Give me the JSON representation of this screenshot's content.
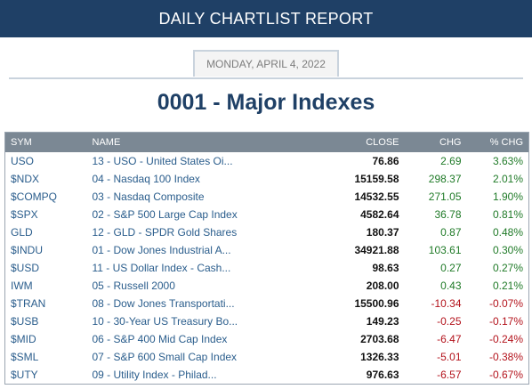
{
  "header": {
    "title": "DAILY CHARTLIST REPORT"
  },
  "report": {
    "date": "MONDAY, APRIL 4, 2022",
    "list_title": "0001 - Major Indexes"
  },
  "colors": {
    "banner": "#1f4066",
    "positive": "#1f7a27",
    "negative": "#b3121b",
    "symbol": "#2a5d8c"
  },
  "table": {
    "columns": [
      "SYM",
      "NAME",
      "CLOSE",
      "CHG",
      "% CHG"
    ],
    "rows": [
      {
        "sym": "USO",
        "name": "13 - USO - United States Oi...",
        "close": "76.86",
        "chg": "2.69",
        "pct": "3.63%",
        "dir": "pos"
      },
      {
        "sym": "$NDX",
        "name": "04 - Nasdaq 100 Index",
        "close": "15159.58",
        "chg": "298.37",
        "pct": "2.01%",
        "dir": "pos"
      },
      {
        "sym": "$COMPQ",
        "name": "03 - Nasdaq Composite",
        "close": "14532.55",
        "chg": "271.05",
        "pct": "1.90%",
        "dir": "pos"
      },
      {
        "sym": "$SPX",
        "name": "02 - S&P 500 Large Cap Index",
        "close": "4582.64",
        "chg": "36.78",
        "pct": "0.81%",
        "dir": "pos"
      },
      {
        "sym": "GLD",
        "name": "12 - GLD - SPDR Gold Shares",
        "close": "180.37",
        "chg": "0.87",
        "pct": "0.48%",
        "dir": "pos"
      },
      {
        "sym": "$INDU",
        "name": "01 - Dow Jones Industrial A...",
        "close": "34921.88",
        "chg": "103.61",
        "pct": "0.30%",
        "dir": "pos"
      },
      {
        "sym": "$USD",
        "name": "11 - US Dollar Index - Cash...",
        "close": "98.63",
        "chg": "0.27",
        "pct": "0.27%",
        "dir": "pos"
      },
      {
        "sym": "IWM",
        "name": "05 - Russell 2000",
        "close": "208.00",
        "chg": "0.43",
        "pct": "0.21%",
        "dir": "pos"
      },
      {
        "sym": "$TRAN",
        "name": "08 - Dow Jones Transportati...",
        "close": "15500.96",
        "chg": "-10.34",
        "pct": "-0.07%",
        "dir": "neg"
      },
      {
        "sym": "$USB",
        "name": "10 - 30-Year US Treasury Bo...",
        "close": "149.23",
        "chg": "-0.25",
        "pct": "-0.17%",
        "dir": "neg"
      },
      {
        "sym": "$MID",
        "name": "06 - S&P 400 Mid Cap Index",
        "close": "2703.68",
        "chg": "-6.47",
        "pct": "-0.24%",
        "dir": "neg"
      },
      {
        "sym": "$SML",
        "name": "07 - S&P 600 Small Cap Index",
        "close": "1326.33",
        "chg": "-5.01",
        "pct": "-0.38%",
        "dir": "neg"
      },
      {
        "sym": "$UTY",
        "name": "09 - Utility Index - Philad...",
        "close": "976.63",
        "chg": "-6.57",
        "pct": "-0.67%",
        "dir": "neg"
      }
    ]
  }
}
